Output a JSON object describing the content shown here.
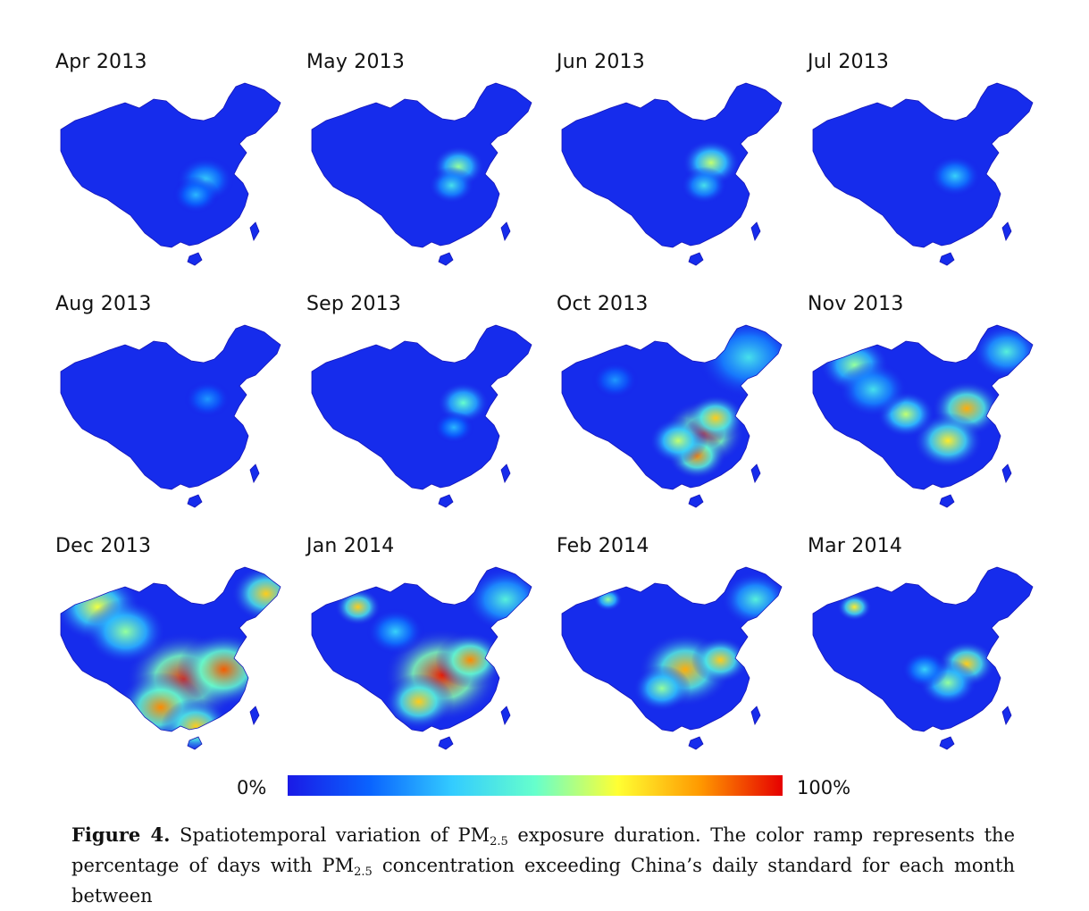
{
  "panels": [
    {
      "title": "Apr 2013",
      "hot": [
        [
          0.64,
          0.52,
          0.1,
          0.35
        ],
        [
          0.6,
          0.6,
          0.08,
          0.3
        ]
      ]
    },
    {
      "title": "May 2013",
      "hot": [
        [
          0.65,
          0.45,
          0.09,
          0.55
        ],
        [
          0.62,
          0.55,
          0.08,
          0.4
        ]
      ]
    },
    {
      "title": "Jun 2013",
      "hot": [
        [
          0.66,
          0.43,
          0.1,
          0.6
        ],
        [
          0.63,
          0.55,
          0.08,
          0.4
        ]
      ]
    },
    {
      "title": "Jul 2013",
      "hot": [
        [
          0.63,
          0.5,
          0.09,
          0.35
        ]
      ]
    },
    {
      "title": "Aug 2013",
      "hot": [
        [
          0.65,
          0.4,
          0.08,
          0.25
        ]
      ]
    },
    {
      "title": "Sep 2013",
      "hot": [
        [
          0.67,
          0.42,
          0.09,
          0.5
        ],
        [
          0.63,
          0.55,
          0.07,
          0.3
        ]
      ]
    },
    {
      "title": "Oct 2013",
      "hot": [
        [
          0.63,
          0.58,
          0.14,
          0.95
        ],
        [
          0.6,
          0.7,
          0.1,
          0.85
        ],
        [
          0.52,
          0.62,
          0.1,
          0.6
        ],
        [
          0.82,
          0.18,
          0.18,
          0.4
        ],
        [
          0.25,
          0.3,
          0.08,
          0.25
        ],
        [
          0.68,
          0.5,
          0.1,
          0.75
        ]
      ]
    },
    {
      "title": "Nov 2013",
      "hot": [
        [
          0.2,
          0.22,
          0.12,
          0.55
        ],
        [
          0.68,
          0.45,
          0.12,
          0.8
        ],
        [
          0.6,
          0.62,
          0.12,
          0.7
        ],
        [
          0.42,
          0.48,
          0.1,
          0.6
        ],
        [
          0.85,
          0.15,
          0.12,
          0.45
        ],
        [
          0.28,
          0.35,
          0.12,
          0.4
        ]
      ]
    },
    {
      "title": "Dec 2013",
      "hot": [
        [
          0.18,
          0.22,
          0.15,
          0.65
        ],
        [
          0.55,
          0.6,
          0.2,
          0.95
        ],
        [
          0.72,
          0.55,
          0.16,
          0.9
        ],
        [
          0.45,
          0.75,
          0.15,
          0.85
        ],
        [
          0.9,
          0.15,
          0.12,
          0.75
        ],
        [
          0.3,
          0.35,
          0.14,
          0.55
        ],
        [
          0.6,
          0.85,
          0.12,
          0.75
        ]
      ]
    },
    {
      "title": "Jan 2014",
      "hot": [
        [
          0.22,
          0.22,
          0.08,
          0.75
        ],
        [
          0.58,
          0.58,
          0.2,
          0.97
        ],
        [
          0.7,
          0.5,
          0.12,
          0.85
        ],
        [
          0.48,
          0.72,
          0.12,
          0.75
        ],
        [
          0.85,
          0.18,
          0.14,
          0.45
        ],
        [
          0.38,
          0.35,
          0.1,
          0.35
        ]
      ]
    },
    {
      "title": "Feb 2014",
      "hot": [
        [
          0.22,
          0.18,
          0.05,
          0.55
        ],
        [
          0.55,
          0.55,
          0.16,
          0.8
        ],
        [
          0.7,
          0.5,
          0.1,
          0.75
        ],
        [
          0.85,
          0.18,
          0.12,
          0.45
        ],
        [
          0.45,
          0.65,
          0.1,
          0.55
        ]
      ]
    },
    {
      "title": "Mar 2014",
      "hot": [
        [
          0.2,
          0.22,
          0.06,
          0.7
        ],
        [
          0.68,
          0.52,
          0.1,
          0.75
        ],
        [
          0.6,
          0.62,
          0.1,
          0.55
        ],
        [
          0.5,
          0.55,
          0.08,
          0.35
        ]
      ]
    }
  ],
  "colorbar": {
    "min_label": "0%",
    "max_label": "100%",
    "stops": [
      "#1a1ae6",
      "#0a64ff",
      "#33ccff",
      "#66ffcc",
      "#ffff33",
      "#ff9900",
      "#e60000"
    ]
  },
  "caption": {
    "label": "Figure 4.",
    "text_1": "Spatiotemporal variation of PM",
    "sub_1": "2.5",
    "text_2": " exposure duration.  The color ramp represents the percentage of days with PM",
    "sub_2": "2.5",
    "text_3": " concentration exceeding China’s daily standard for each month between"
  }
}
